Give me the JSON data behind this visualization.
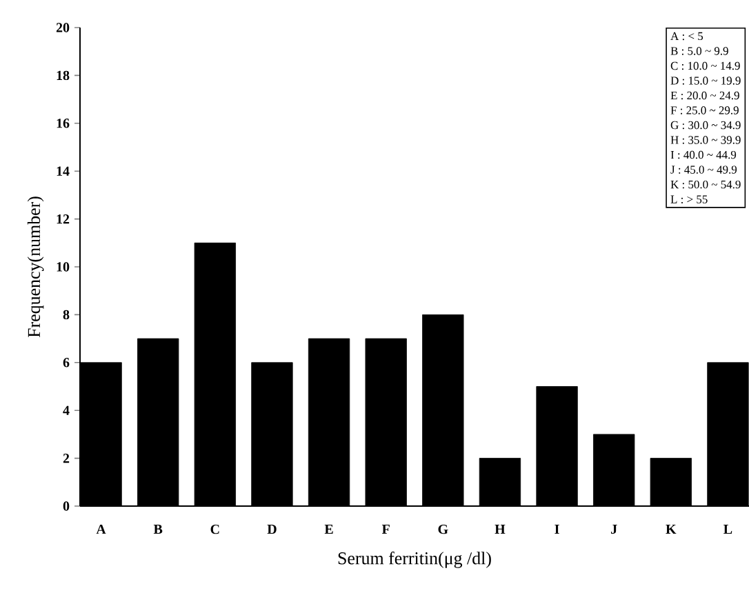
{
  "chart_data": {
    "type": "bar",
    "xlabel": "Serum ferritin(μg /dl)",
    "ylabel": "Frequency(number)",
    "categories": [
      "A",
      "B",
      "C",
      "D",
      "E",
      "F",
      "G",
      "H",
      "I",
      "J",
      "K",
      "L"
    ],
    "values": [
      6,
      7,
      11,
      6,
      7,
      7,
      8,
      2,
      5,
      3,
      2,
      6
    ],
    "color": "#000000",
    "ylim": [
      0,
      20
    ],
    "yticks": [
      0,
      2,
      4,
      6,
      8,
      10,
      12,
      14,
      16,
      18,
      20
    ],
    "grid": false,
    "annotations": [
      "A :   < 5",
      "B : 5.0 ~ 9.9",
      "C : 10.0 ~ 14.9",
      "D : 15.0 ~ 19.9",
      "E : 20.0 ~ 24.9",
      "F : 25.0 ~ 29.9",
      "G : 30.0 ~ 34.9",
      "H : 35.0 ~ 39.9",
      "I : 40.0 ~ 44.9",
      "J : 45.0 ~ 49.9",
      "K : 50.0 ~ 54.9",
      "L :    > 55"
    ]
  }
}
